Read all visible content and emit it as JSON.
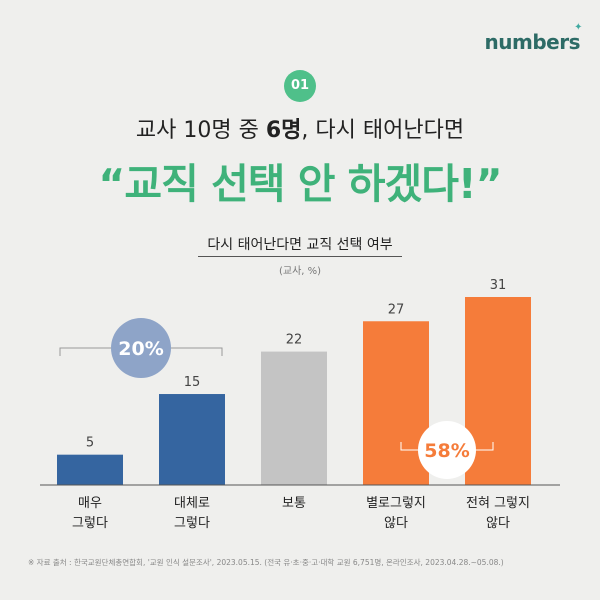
{
  "logo": "numbers",
  "badge": "01",
  "headline": {
    "pre": "교사 10명 중 ",
    "bold": "6명",
    "post": ", 다시 태어난다면"
  },
  "big_title": "“교직 선택 안 하겠다!”",
  "source": "※ 자료 출처 : 한국교원단체총연합회, '교원 인식 설문조사', 2023.05.15. (전국 유·초·중·고·대학 교원 6,751명, 온라인조사, 2023.04.28.~05.08.)",
  "colors": {
    "blue": "#3565a0",
    "gray": "#c4c4c4",
    "orange": "#f57c3a",
    "green": "#3fb27a",
    "badge_blue": "#8ea4c8"
  },
  "chart_data": {
    "type": "bar",
    "title": "다시 태어난다면 교직 선택 여부",
    "unit": "(교사, %)",
    "categories": [
      [
        "매우",
        "그렇다"
      ],
      [
        "대체로",
        "그렇다"
      ],
      [
        "보통"
      ],
      [
        "별로그렇지",
        "않다"
      ],
      [
        "전혀 그렇지",
        "않다"
      ]
    ],
    "values": [
      5,
      15,
      22,
      27,
      31
    ],
    "value_labels": [
      "5",
      "15",
      "22",
      "27",
      "31"
    ],
    "bar_colors": [
      "#3565a0",
      "#3565a0",
      "#c4c4c4",
      "#f57c3a",
      "#f57c3a"
    ],
    "ylim": [
      0,
      31
    ],
    "groups": [
      {
        "label": "20%",
        "from": 0,
        "to": 1,
        "color": "#8ea4c8",
        "position": "above"
      },
      {
        "label": "58%",
        "from": 3,
        "to": 4,
        "color": "#ffffff",
        "text_color": "#f57c3a",
        "position": "inside"
      }
    ]
  }
}
